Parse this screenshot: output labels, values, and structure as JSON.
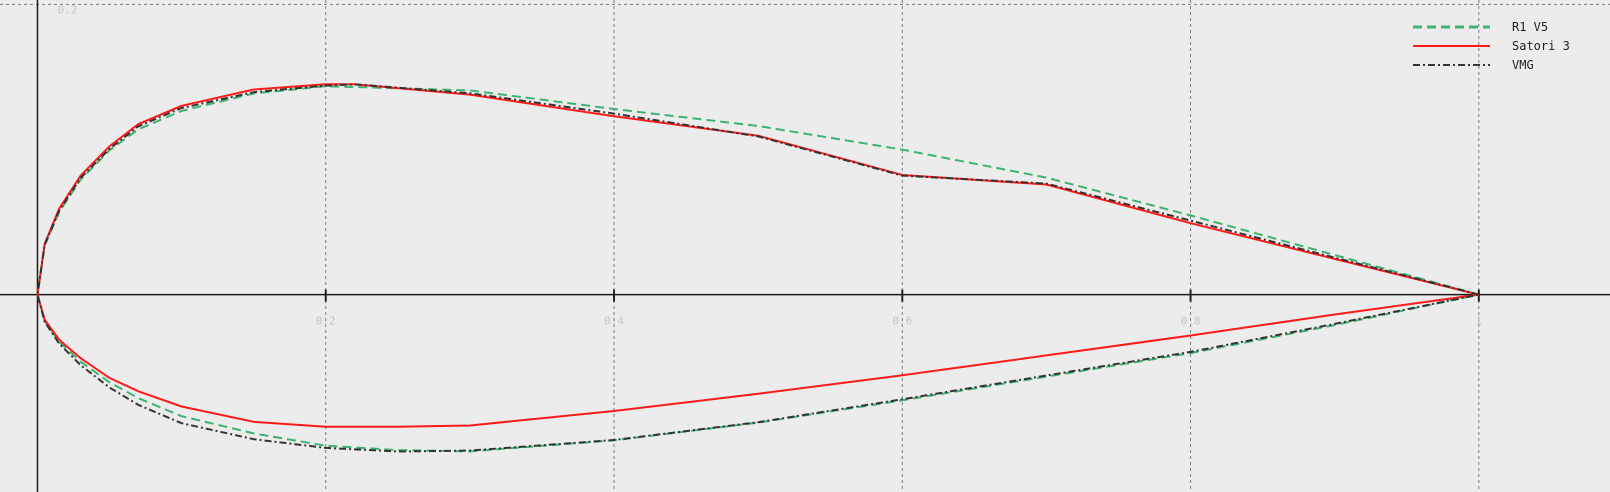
{
  "chart_data": {
    "type": "line",
    "title": "",
    "xlabel": "",
    "ylabel": "",
    "xlim": [
      -0.026,
      1.091
    ],
    "ylim": [
      -0.136,
      0.203
    ],
    "grid": true,
    "legend_position": "top-right",
    "x_ticks": [
      {
        "value": 0.2,
        "label": "0.2"
      },
      {
        "value": 0.4,
        "label": "0.4"
      },
      {
        "value": 0.6,
        "label": "0.6"
      },
      {
        "value": 0.8,
        "label": "0.8"
      },
      {
        "value": 1.0,
        "label": "1"
      }
    ],
    "y_ticks": [
      {
        "value": 0.2,
        "label": "0.2"
      }
    ],
    "series": [
      {
        "name": "R1 V5",
        "color": "#3cb371",
        "style": "dashed",
        "x": [
          1.0,
          0.9,
          0.8,
          0.7,
          0.6,
          0.5,
          0.4,
          0.3,
          0.2,
          0.15,
          0.1,
          0.07,
          0.05,
          0.03,
          0.015,
          0.005,
          0.0,
          0.005,
          0.015,
          0.03,
          0.05,
          0.07,
          0.1,
          0.15,
          0.2,
          0.25,
          0.3,
          0.4,
          0.5,
          0.6,
          0.7,
          0.8,
          0.9,
          1.0
        ],
        "y": [
          0.0,
          0.0273,
          0.0546,
          0.0806,
          0.0999,
          0.1162,
          0.1279,
          0.1407,
          0.1436,
          0.1386,
          0.1266,
          0.1139,
          0.0995,
          0.0793,
          0.0568,
          0.0339,
          0.0,
          -0.0182,
          -0.0325,
          -0.0462,
          -0.0604,
          -0.0714,
          -0.0838,
          -0.0956,
          -0.1041,
          -0.1071,
          -0.108,
          -0.1004,
          -0.0882,
          -0.0728,
          -0.0565,
          -0.0403,
          -0.021,
          0.0
        ]
      },
      {
        "name": "Satori 3",
        "color": "#ff1a1a",
        "style": "solid",
        "x": [
          1.0,
          0.9,
          0.8,
          0.7,
          0.6,
          0.5,
          0.4,
          0.3,
          0.22,
          0.2,
          0.15,
          0.1,
          0.07,
          0.05,
          0.03,
          0.015,
          0.005,
          0.0,
          0.005,
          0.015,
          0.03,
          0.05,
          0.07,
          0.1,
          0.15,
          0.2,
          0.25,
          0.3,
          0.4,
          0.5,
          0.6,
          0.7,
          0.8,
          0.9,
          1.0
        ],
        "y": [
          0.0,
          0.0246,
          0.0492,
          0.0759,
          0.0824,
          0.1095,
          0.1229,
          0.1378,
          0.1449,
          0.1449,
          0.1413,
          0.1301,
          0.1175,
          0.1022,
          0.082,
          0.0591,
          0.0351,
          0.0,
          -0.0173,
          -0.031,
          -0.0438,
          -0.0574,
          -0.0666,
          -0.0771,
          -0.0876,
          -0.0911,
          -0.0911,
          -0.0902,
          -0.0802,
          -0.0683,
          -0.0556,
          -0.0419,
          -0.0282,
          -0.0137,
          0.0
        ]
      },
      {
        "name": "VMG",
        "color": "#333333",
        "style": "dashdot",
        "x": [
          1.0,
          0.9,
          0.8,
          0.7,
          0.6,
          0.5,
          0.4,
          0.3,
          0.22,
          0.2,
          0.15,
          0.1,
          0.07,
          0.05,
          0.03,
          0.015,
          0.005,
          0.0,
          0.005,
          0.015,
          0.03,
          0.05,
          0.07,
          0.1,
          0.15,
          0.2,
          0.25,
          0.3,
          0.4,
          0.5,
          0.6,
          0.7,
          0.8,
          0.9,
          1.0
        ],
        "y": [
          0.0,
          0.0255,
          0.051,
          0.0765,
          0.082,
          0.109,
          0.1247,
          0.1387,
          0.1449,
          0.144,
          0.1395,
          0.1286,
          0.116,
          0.1004,
          0.0805,
          0.0577,
          0.0344,
          0.0,
          -0.0187,
          -0.0337,
          -0.0486,
          -0.064,
          -0.076,
          -0.0886,
          -0.0996,
          -0.1056,
          -0.1081,
          -0.1075,
          -0.1002,
          -0.0879,
          -0.0721,
          -0.0557,
          -0.0395,
          -0.0202,
          0.0
        ]
      }
    ]
  }
}
